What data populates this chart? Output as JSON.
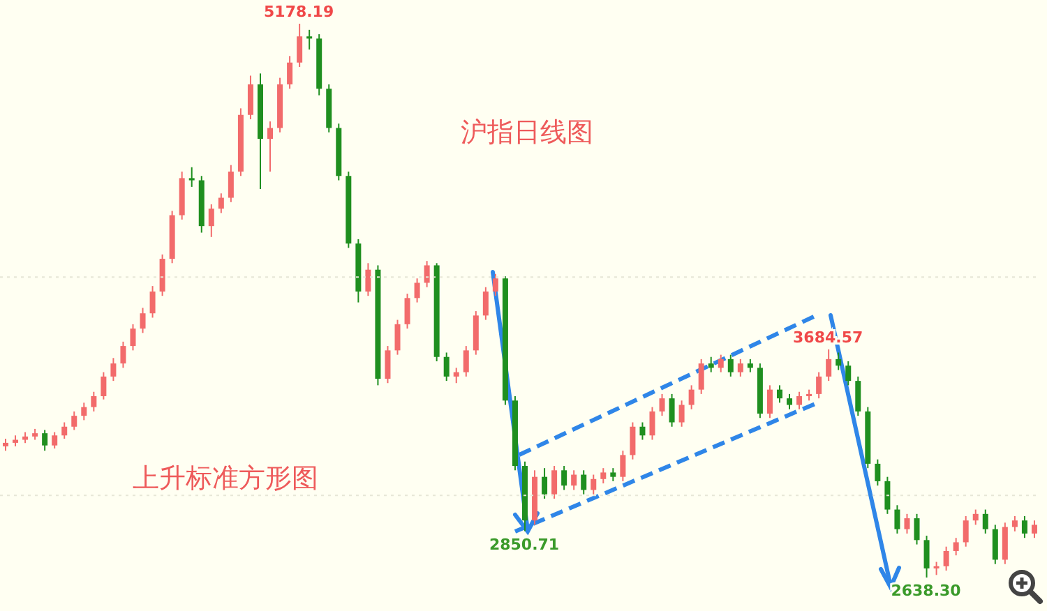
{
  "chart_data": {
    "type": "candlestick",
    "title": "沪指日线图",
    "annotations": [
      "上升标准方形图",
      {
        "text": "5178.19",
        "y": 5178.19
      },
      {
        "text": "2850.71",
        "y": 2850.71
      },
      {
        "text": "3684.57",
        "y": 3684.57
      },
      {
        "text": "2638.30",
        "y": 2638.3
      }
    ],
    "ref_lines": [
      {
        "axis": "y",
        "value": 4016,
        "color": "#e6e6d6",
        "line_style": "dotted"
      },
      {
        "axis": "y",
        "value": 3015,
        "color": "#e6e6d6",
        "line_style": "dotted"
      }
    ],
    "categories": [
      null,
      null,
      null,
      null,
      null,
      null,
      null,
      null,
      null,
      null,
      null,
      null,
      null,
      null,
      null,
      null,
      null,
      null,
      null,
      null,
      null,
      null,
      null,
      null,
      null,
      null,
      null,
      null,
      null,
      null,
      null,
      null,
      null,
      null,
      null,
      null,
      null,
      null,
      null,
      null,
      null,
      null,
      null,
      null,
      null,
      null,
      null,
      null,
      null,
      null,
      null,
      null,
      null,
      null,
      null,
      null,
      null,
      null,
      null,
      null,
      null,
      null,
      null,
      null,
      null,
      null,
      null,
      null,
      null,
      null,
      null,
      null,
      null,
      null,
      null,
      null,
      null,
      null,
      null,
      null,
      null,
      null,
      null,
      null,
      null,
      null,
      null,
      null,
      null,
      null,
      null,
      null,
      null,
      null,
      null,
      null,
      null,
      null,
      null,
      null,
      null,
      null,
      null,
      null,
      null,
      null
    ],
    "ohlc": [
      [
        3240,
        3275,
        3220,
        3256
      ],
      [
        3256,
        3290,
        3240,
        3270
      ],
      [
        3270,
        3305,
        3255,
        3285
      ],
      [
        3285,
        3320,
        3270,
        3300
      ],
      [
        3300,
        3315,
        3220,
        3244
      ],
      [
        3244,
        3305,
        3230,
        3290
      ],
      [
        3290,
        3350,
        3275,
        3330
      ],
      [
        3330,
        3400,
        3315,
        3380
      ],
      [
        3380,
        3440,
        3360,
        3420
      ],
      [
        3420,
        3490,
        3400,
        3470
      ],
      [
        3470,
        3580,
        3455,
        3560
      ],
      [
        3560,
        3645,
        3540,
        3620
      ],
      [
        3620,
        3720,
        3600,
        3700
      ],
      [
        3700,
        3800,
        3680,
        3780
      ],
      [
        3780,
        3875,
        3760,
        3850
      ],
      [
        3850,
        3975,
        3830,
        3950
      ],
      [
        3950,
        4120,
        3930,
        4100
      ],
      [
        4100,
        4320,
        4080,
        4300
      ],
      [
        4300,
        4500,
        4280,
        4470
      ],
      [
        4470,
        4520,
        4430,
        4460
      ],
      [
        4460,
        4480,
        4220,
        4250
      ],
      [
        4250,
        4350,
        4200,
        4330
      ],
      [
        4330,
        4400,
        4310,
        4380
      ],
      [
        4380,
        4530,
        4360,
        4500
      ],
      [
        4500,
        4790,
        4480,
        4760
      ],
      [
        4760,
        4940,
        4740,
        4900
      ],
      [
        4900,
        4950,
        4420,
        4650
      ],
      [
        4650,
        4730,
        4500,
        4700
      ],
      [
        4700,
        4930,
        4680,
        4900
      ],
      [
        4900,
        5030,
        4880,
        5000
      ],
      [
        5000,
        5178.19,
        4980,
        5120
      ],
      [
        5120,
        5150,
        5060,
        5110
      ],
      [
        5110,
        5130,
        4850,
        4880
      ],
      [
        4880,
        4900,
        4680,
        4700
      ],
      [
        4700,
        4720,
        4460,
        4480
      ],
      [
        4480,
        4500,
        4150,
        4170
      ],
      [
        4170,
        4190,
        3900,
        3950
      ],
      [
        3950,
        4080,
        3930,
        4050
      ],
      [
        4050,
        4070,
        3520,
        3550
      ],
      [
        3550,
        3700,
        3530,
        3680
      ],
      [
        3680,
        3820,
        3660,
        3800
      ],
      [
        3800,
        3940,
        3780,
        3920
      ],
      [
        3920,
        4010,
        3900,
        3990
      ],
      [
        3990,
        4090,
        3970,
        4070
      ],
      [
        4070,
        4080,
        3630,
        3650
      ],
      [
        3650,
        3670,
        3540,
        3560
      ],
      [
        3560,
        3600,
        3530,
        3580
      ],
      [
        3580,
        3700,
        3560,
        3680
      ],
      [
        3680,
        3860,
        3660,
        3840
      ],
      [
        3840,
        3970,
        3820,
        3950
      ],
      [
        3950,
        4030,
        3930,
        4010
      ],
      [
        4010,
        4020,
        3430,
        3450
      ],
      [
        3450,
        3470,
        3130,
        3150
      ],
      [
        3150,
        3170,
        2850.71,
        2900
      ],
      [
        2900,
        3130,
        2880,
        3100
      ],
      [
        3100,
        3140,
        3000,
        3020
      ],
      [
        3020,
        3150,
        3000,
        3130
      ],
      [
        3130,
        3150,
        3040,
        3060
      ],
      [
        3060,
        3130,
        3040,
        3110
      ],
      [
        3110,
        3130,
        3020,
        3040
      ],
      [
        3040,
        3110,
        3020,
        3090
      ],
      [
        3090,
        3140,
        3070,
        3120
      ],
      [
        3120,
        3140,
        3080,
        3100
      ],
      [
        3100,
        3220,
        3080,
        3200
      ],
      [
        3200,
        3350,
        3180,
        3330
      ],
      [
        3330,
        3350,
        3270,
        3290
      ],
      [
        3290,
        3420,
        3270,
        3400
      ],
      [
        3400,
        3480,
        3380,
        3460
      ],
      [
        3460,
        3480,
        3330,
        3350
      ],
      [
        3350,
        3450,
        3330,
        3430
      ],
      [
        3430,
        3520,
        3410,
        3500
      ],
      [
        3500,
        3640,
        3480,
        3620
      ],
      [
        3620,
        3650,
        3580,
        3600
      ],
      [
        3600,
        3660,
        3580,
        3640
      ],
      [
        3640,
        3660,
        3560,
        3580
      ],
      [
        3580,
        3640,
        3560,
        3620
      ],
      [
        3620,
        3640,
        3580,
        3600
      ],
      [
        3600,
        3620,
        3370,
        3390
      ],
      [
        3390,
        3520,
        3370,
        3500
      ],
      [
        3500,
        3520,
        3440,
        3460
      ],
      [
        3460,
        3480,
        3410,
        3430
      ],
      [
        3430,
        3490,
        3410,
        3470
      ],
      [
        3470,
        3500,
        3450,
        3480
      ],
      [
        3480,
        3580,
        3460,
        3560
      ],
      [
        3560,
        3684.57,
        3540,
        3640
      ],
      [
        3640,
        3670,
        3590,
        3610
      ],
      [
        3610,
        3630,
        3520,
        3540
      ],
      [
        3540,
        3560,
        3380,
        3400
      ],
      [
        3400,
        3420,
        3140,
        3160
      ],
      [
        3160,
        3180,
        3060,
        3080
      ],
      [
        3080,
        3100,
        2930,
        2950
      ],
      [
        2950,
        2970,
        2840,
        2860
      ],
      [
        2860,
        2930,
        2840,
        2910
      ],
      [
        2910,
        2930,
        2790,
        2810
      ],
      [
        2810,
        2830,
        2638.3,
        2680
      ],
      [
        2680,
        2710,
        2650,
        2690
      ],
      [
        2690,
        2780,
        2670,
        2760
      ],
      [
        2760,
        2820,
        2740,
        2800
      ],
      [
        2800,
        2920,
        2780,
        2900
      ],
      [
        2900,
        2950,
        2880,
        2930
      ],
      [
        2930,
        2950,
        2840,
        2860
      ],
      [
        2860,
        2880,
        2700,
        2720
      ],
      [
        2720,
        2890,
        2700,
        2870
      ],
      [
        2870,
        2920,
        2850,
        2900
      ],
      [
        2900,
        2920,
        2820,
        2840
      ],
      [
        2840,
        2900,
        2820,
        2880
      ]
    ]
  }
}
